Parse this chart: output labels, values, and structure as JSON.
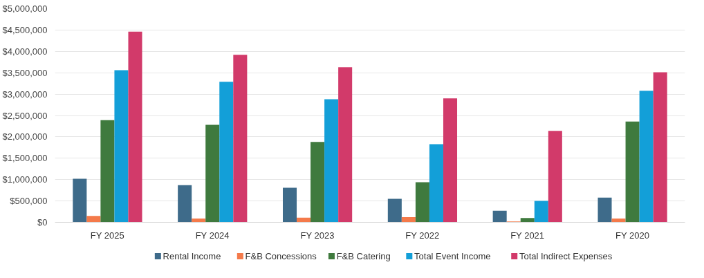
{
  "chart_data": {
    "type": "bar",
    "categories": [
      "FY 2025",
      "FY 2024",
      "FY 2023",
      "FY 2022",
      "FY 2021",
      "FY 2020"
    ],
    "series": [
      {
        "name": "Rental Income",
        "color": "#3e6b8a",
        "values": [
          1020000,
          870000,
          810000,
          550000,
          270000,
          580000
        ]
      },
      {
        "name": "F&B Concessions",
        "color": "#f47a4a",
        "values": [
          150000,
          90000,
          110000,
          120000,
          20000,
          90000
        ]
      },
      {
        "name": "F&B Catering",
        "color": "#3f7a3e",
        "values": [
          2390000,
          2280000,
          1880000,
          940000,
          100000,
          2360000
        ]
      },
      {
        "name": "Total Event Income",
        "color": "#139fd8",
        "values": [
          3560000,
          3290000,
          2880000,
          1830000,
          500000,
          3080000
        ]
      },
      {
        "name": "Total Indirect Expenses",
        "color": "#d23a6a",
        "values": [
          4460000,
          3920000,
          3630000,
          2900000,
          2140000,
          3510000
        ]
      }
    ],
    "ylim": [
      0,
      5000000
    ],
    "yticks": [
      {
        "value": 0,
        "label": "$0"
      },
      {
        "value": 500000,
        "label": "$500,000"
      },
      {
        "value": 1000000,
        "label": "$1,000,000"
      },
      {
        "value": 1500000,
        "label": "$1,500,000"
      },
      {
        "value": 2000000,
        "label": "$2,000,000"
      },
      {
        "value": 2500000,
        "label": "$2,500,000"
      },
      {
        "value": 3000000,
        "label": "$3,000,000"
      },
      {
        "value": 3500000,
        "label": "$3,500,000"
      },
      {
        "value": 4000000,
        "label": "$4,000,000"
      },
      {
        "value": 4500000,
        "label": "$4,500,000"
      },
      {
        "value": 5000000,
        "label": "$5,000,000"
      }
    ],
    "grid": "y",
    "legend": "bottom"
  }
}
